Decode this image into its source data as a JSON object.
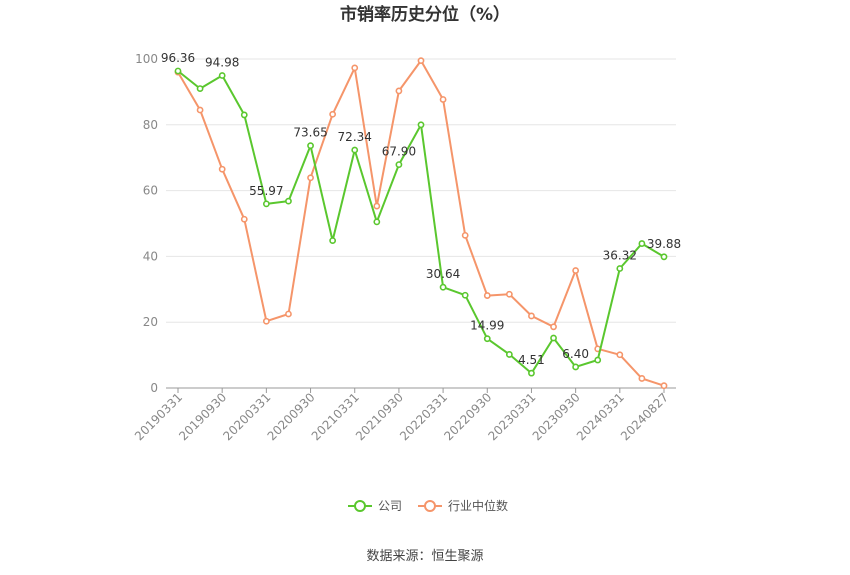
{
  "chart_data": {
    "type": "line",
    "title": "市销率历史分位（%）",
    "source": "数据来源：恒生聚源",
    "ylim": [
      0,
      100
    ],
    "yticks": [
      0,
      20,
      40,
      60,
      80,
      100
    ],
    "x": [
      "20190331",
      "20190630",
      "20190930",
      "20191231",
      "20200331",
      "20200630",
      "20200930",
      "20201231",
      "20210331",
      "20210630",
      "20210930",
      "20211231",
      "20220331",
      "20220630",
      "20220930",
      "20221231",
      "20230331",
      "20230630",
      "20230930",
      "20231231",
      "20240331",
      "20240630",
      "20240827"
    ],
    "xticks": [
      "20190331",
      "20190930",
      "20200331",
      "20200930",
      "20210331",
      "20210930",
      "20220331",
      "20220930",
      "20230331",
      "20230930",
      "20240331",
      "20240827"
    ],
    "grid": true,
    "legend_position": "bottom",
    "series": [
      {
        "name": "公司",
        "color": "#5ac72e",
        "values": [
          96.36,
          91.0,
          94.98,
          83.0,
          55.97,
          56.8,
          73.65,
          44.8,
          72.34,
          50.5,
          67.9,
          80.0,
          30.64,
          28.2,
          14.99,
          10.2,
          4.51,
          15.2,
          6.4,
          8.5,
          36.32,
          43.9,
          39.88
        ],
        "labels": [
          "96.36",
          "",
          "94.98",
          "",
          "55.97",
          "",
          "73.65",
          "",
          "72.34",
          "",
          "67.90",
          "",
          "30.64",
          "",
          "14.99",
          "",
          "4.51",
          "",
          "6.40",
          "",
          "36.32",
          "",
          "39.88"
        ]
      },
      {
        "name": "行业中位数",
        "color": "#f5956a",
        "values": [
          96.0,
          84.5,
          66.5,
          51.3,
          20.3,
          22.5,
          63.9,
          83.2,
          97.3,
          55.3,
          90.3,
          99.5,
          87.7,
          46.4,
          28.1,
          28.5,
          21.9,
          18.6,
          35.7,
          11.9,
          10.1,
          2.9,
          0.7
        ]
      }
    ]
  }
}
